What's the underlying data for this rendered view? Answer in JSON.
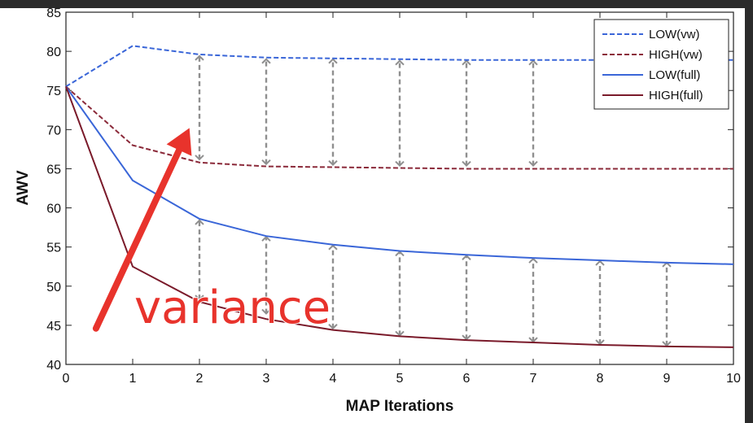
{
  "chart_data": {
    "type": "line",
    "xlabel": "MAP Iterations",
    "ylabel": "AWV",
    "xlim": [
      0,
      10
    ],
    "ylim": [
      40,
      85
    ],
    "xticks": [
      "0",
      "1",
      "2",
      "3",
      "4",
      "5",
      "6",
      "7",
      "8",
      "9",
      "10"
    ],
    "yticks": [
      "40",
      "45",
      "50",
      "55",
      "60",
      "65",
      "70",
      "75",
      "80",
      "85"
    ],
    "grid": false,
    "legend_position": "top-right",
    "x": [
      0,
      1,
      2,
      3,
      4,
      5,
      6,
      7,
      8,
      9,
      10
    ],
    "series": [
      {
        "name": "LOW(vw)",
        "color": "#3a66d8",
        "style": "dashed",
        "values": [
          75.5,
          80.7,
          79.6,
          79.2,
          79.1,
          79.0,
          78.9,
          78.9,
          78.9,
          78.9,
          78.9
        ]
      },
      {
        "name": "HIGH(vw)",
        "color": "#8b2a3a",
        "style": "dashed",
        "values": [
          75.5,
          68.0,
          65.8,
          65.3,
          65.2,
          65.1,
          65.0,
          65.0,
          65.0,
          65.0,
          65.0
        ]
      },
      {
        "name": "LOW(full)",
        "color": "#3a66d8",
        "style": "solid",
        "values": [
          75.5,
          63.5,
          58.6,
          56.4,
          55.3,
          54.5,
          54.0,
          53.6,
          53.3,
          53.0,
          52.8
        ]
      },
      {
        "name": "HIGH(full)",
        "color": "#7a1a2a",
        "style": "solid",
        "values": [
          75.5,
          52.5,
          48.0,
          45.8,
          44.4,
          43.6,
          43.1,
          42.8,
          42.5,
          42.3,
          42.2
        ]
      }
    ],
    "gap_arrows": [
      {
        "x": 2,
        "from": 66.2,
        "to": 79.4
      },
      {
        "x": 3,
        "from": 65.6,
        "to": 79.0
      },
      {
        "x": 4,
        "from": 65.5,
        "to": 79.0
      },
      {
        "x": 5,
        "from": 65.4,
        "to": 78.8
      },
      {
        "x": 6,
        "from": 65.4,
        "to": 78.8
      },
      {
        "x": 7,
        "from": 65.4,
        "to": 78.8
      },
      {
        "x": 2,
        "from": 48.3,
        "to": 58.4
      },
      {
        "x": 3,
        "from": 46.5,
        "to": 56.3
      },
      {
        "x": 4,
        "from": 44.6,
        "to": 55.2
      },
      {
        "x": 5,
        "from": 43.7,
        "to": 54.4
      },
      {
        "x": 6,
        "from": 43.2,
        "to": 53.9
      },
      {
        "x": 7,
        "from": 42.9,
        "to": 53.5
      },
      {
        "x": 8,
        "from": 42.6,
        "to": 53.2
      },
      {
        "x": 9,
        "from": 42.4,
        "to": 53.0
      }
    ],
    "annotation": {
      "text": "variance",
      "color": "#e8332c",
      "arrow_from": [
        0.45,
        44.6
      ],
      "arrow_to": [
        1.85,
        70.2
      ]
    }
  }
}
